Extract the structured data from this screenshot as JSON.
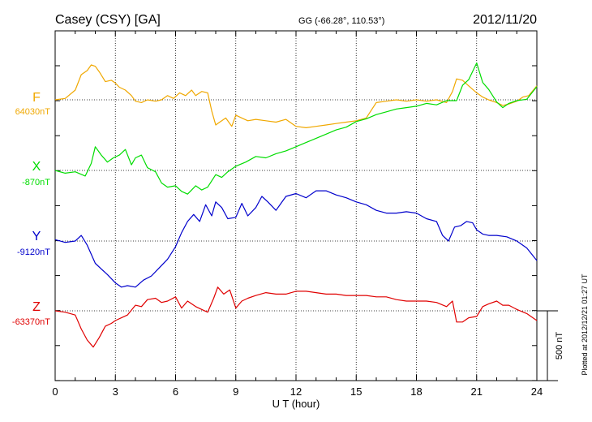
{
  "header": {
    "station": "Casey (CSY)  [GA]",
    "coords": "GG (-66.28°, 110.53°)",
    "date": "2012/11/20"
  },
  "footer": {
    "plotted": "Plotted at 2012/12/21 01:27 UT",
    "scale_label": "500 nT"
  },
  "colors": {
    "F": "#f0a800",
    "X": "#00dd00",
    "Y": "#0000cc",
    "Z": "#e00000",
    "grid": "#000000"
  },
  "chart_data": {
    "type": "line",
    "title": "Casey (CSY)  [GA]",
    "xlabel": "U T (hour)",
    "xlim": [
      0,
      24
    ],
    "xticks": [
      0,
      3,
      6,
      9,
      12,
      15,
      18,
      21,
      24
    ],
    "scale_bar_nT": 500,
    "series": [
      {
        "name": "F",
        "key": "F",
        "baseline_label": "64030nT",
        "baseline": 64030,
        "x": [
          0,
          0.5,
          1,
          1.3,
          1.6,
          1.8,
          2,
          2.2,
          2.5,
          2.8,
          3,
          3.2,
          3.5,
          3.8,
          4,
          4.3,
          4.6,
          5,
          5.3,
          5.6,
          5.9,
          6.2,
          6.5,
          6.8,
          7,
          7.3,
          7.6,
          7.8,
          8,
          8.2,
          8.5,
          8.8,
          9,
          9.3,
          9.6,
          10,
          10.5,
          11,
          11.5,
          12,
          12.5,
          13,
          13.5,
          14,
          14.5,
          15,
          15.5,
          16,
          16.5,
          17,
          17.5,
          18,
          18.5,
          19,
          19.5,
          19.8,
          20,
          20.3,
          20.6,
          21,
          21.3,
          21.6,
          22,
          22.3,
          22.6,
          23,
          23.3,
          23.6,
          24
        ],
        "y": [
          64030,
          64040,
          64100,
          64210,
          64240,
          64280,
          64270,
          64230,
          64160,
          64170,
          64150,
          64120,
          64100,
          64060,
          64020,
          64010,
          64030,
          64020,
          64030,
          64060,
          64040,
          64080,
          64060,
          64100,
          64060,
          64090,
          64080,
          63950,
          63850,
          63870,
          63900,
          63840,
          63920,
          63900,
          63880,
          63890,
          63880,
          63870,
          63890,
          63840,
          63830,
          63840,
          63850,
          63860,
          63870,
          63880,
          63900,
          64010,
          64020,
          64030,
          64020,
          64030,
          64020,
          64030,
          64010,
          64090,
          64180,
          64170,
          64130,
          64080,
          64050,
          64030,
          64010,
          63990,
          64000,
          64020,
          64050,
          64060,
          64130
        ]
      },
      {
        "name": "X",
        "key": "X",
        "baseline_label": "-870nT",
        "baseline": -870,
        "x": [
          0,
          0.5,
          1,
          1.5,
          1.8,
          2,
          2.3,
          2.6,
          2.9,
          3.2,
          3.5,
          3.8,
          4,
          4.3,
          4.6,
          5,
          5.3,
          5.6,
          6,
          6.3,
          6.6,
          7,
          7.3,
          7.6,
          8,
          8.3,
          8.6,
          9,
          9.5,
          10,
          10.5,
          11,
          11.5,
          12,
          12.5,
          13,
          13.5,
          14,
          14.5,
          15,
          15.5,
          16,
          16.5,
          17,
          17.5,
          18,
          18.5,
          19,
          19.5,
          20,
          20.3,
          20.6,
          21,
          21.3,
          21.6,
          22,
          22.3,
          22.6,
          23,
          23.5,
          24
        ],
        "y": [
          -870,
          -890,
          -880,
          -910,
          -820,
          -700,
          -760,
          -810,
          -780,
          -760,
          -720,
          -830,
          -780,
          -760,
          -850,
          -880,
          -960,
          -990,
          -980,
          -1020,
          -1040,
          -980,
          -1010,
          -990,
          -900,
          -920,
          -880,
          -840,
          -810,
          -770,
          -780,
          -750,
          -730,
          -700,
          -670,
          -640,
          -610,
          -580,
          -560,
          -520,
          -500,
          -470,
          -450,
          -430,
          -420,
          -410,
          -390,
          -400,
          -370,
          -370,
          -260,
          -220,
          -100,
          -240,
          -290,
          -380,
          -420,
          -390,
          -370,
          -360,
          -270
        ]
      },
      {
        "name": "Y",
        "key": "Y",
        "baseline_label": "-9120nT",
        "baseline": -9120,
        "x": [
          0,
          0.5,
          1,
          1.3,
          1.6,
          2,
          2.3,
          2.6,
          3,
          3.3,
          3.6,
          4,
          4.4,
          4.8,
          5.2,
          5.6,
          6,
          6.3,
          6.6,
          6.9,
          7.2,
          7.5,
          7.8,
          8,
          8.3,
          8.6,
          9,
          9.3,
          9.6,
          10,
          10.3,
          10.6,
          11,
          11.5,
          12,
          12.5,
          13,
          13.5,
          14,
          14.5,
          15,
          15.5,
          16,
          16.5,
          17,
          17.5,
          18,
          18.5,
          19,
          19.3,
          19.6,
          19.9,
          20.2,
          20.5,
          20.8,
          21,
          21.3,
          21.6,
          22,
          22.5,
          23,
          23.5,
          24
        ],
        "y": [
          -9110,
          -9130,
          -9120,
          -9080,
          -9150,
          -9280,
          -9320,
          -9360,
          -9420,
          -9450,
          -9440,
          -9450,
          -9400,
          -9370,
          -9310,
          -9250,
          -9160,
          -9060,
          -8980,
          -8930,
          -8980,
          -8860,
          -8940,
          -8840,
          -8880,
          -8960,
          -8950,
          -8850,
          -8940,
          -8880,
          -8800,
          -8840,
          -8900,
          -8800,
          -8780,
          -8810,
          -8760,
          -8760,
          -8790,
          -8810,
          -8840,
          -8860,
          -8900,
          -8920,
          -8920,
          -8910,
          -8920,
          -8960,
          -8980,
          -9080,
          -9120,
          -9020,
          -9010,
          -8980,
          -8990,
          -9040,
          -9070,
          -9080,
          -9080,
          -9090,
          -9120,
          -9170,
          -9260
        ]
      },
      {
        "name": "Z",
        "key": "Z",
        "baseline_label": "-63370nT",
        "baseline": -63370,
        "x": [
          0,
          0.5,
          1,
          1.3,
          1.6,
          1.9,
          2.2,
          2.5,
          2.8,
          3,
          3.3,
          3.6,
          4,
          4.3,
          4.6,
          5,
          5.3,
          5.6,
          6,
          6.3,
          6.6,
          7,
          7.3,
          7.6,
          7.9,
          8.1,
          8.4,
          8.7,
          9,
          9.3,
          9.6,
          10,
          10.5,
          11,
          11.5,
          12,
          12.5,
          13,
          13.5,
          14,
          14.5,
          15,
          15.5,
          16,
          16.5,
          17,
          17.5,
          18,
          18.5,
          19,
          19.5,
          19.8,
          20,
          20.3,
          20.6,
          21,
          21.3,
          21.6,
          22,
          22.3,
          22.6,
          23,
          23.5,
          24
        ],
        "y": [
          -63370,
          -63380,
          -63400,
          -63500,
          -63580,
          -63630,
          -63560,
          -63480,
          -63460,
          -63440,
          -63420,
          -63400,
          -63330,
          -63340,
          -63290,
          -63280,
          -63310,
          -63300,
          -63270,
          -63350,
          -63300,
          -63340,
          -63360,
          -63380,
          -63280,
          -63200,
          -63250,
          -63220,
          -63350,
          -63300,
          -63280,
          -63260,
          -63240,
          -63250,
          -63250,
          -63230,
          -63230,
          -63240,
          -63250,
          -63250,
          -63260,
          -63260,
          -63260,
          -63270,
          -63270,
          -63290,
          -63300,
          -63300,
          -63300,
          -63310,
          -63340,
          -63300,
          -63450,
          -63450,
          -63420,
          -63410,
          -63340,
          -63320,
          -63300,
          -63330,
          -63330,
          -63360,
          -63390,
          -63440
        ]
      }
    ]
  }
}
